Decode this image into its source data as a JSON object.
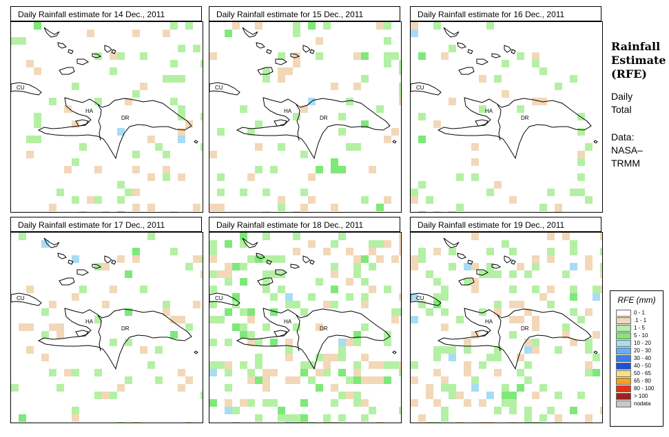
{
  "panels": [
    {
      "title": "Daily Rainfall estimate for  14 Dec., 2011",
      "seed": 14,
      "density": 0.1
    },
    {
      "title": "Daily Rainfall estimate for  15 Dec., 2011",
      "seed": 15,
      "density": 0.1
    },
    {
      "title": "Daily Rainfall estimate for  16 Dec., 2011",
      "seed": 16,
      "density": 0.09
    },
    {
      "title": "Daily Rainfall estimate for  17 Dec., 2011",
      "seed": 17,
      "density": 0.08
    },
    {
      "title": "Daily Rainfall estimate for  18 Dec., 2011",
      "seed": 18,
      "density": 0.28
    },
    {
      "title": "Daily Rainfall estimate for  19 Dec., 2011",
      "seed": 19,
      "density": 0.22
    }
  ],
  "map_labels": {
    "cu": "CU",
    "ha": "HA",
    "dr": "DR"
  },
  "side": {
    "title_line1": "Rainfall",
    "title_line2": "Estimate",
    "title_line3": "(RFE)",
    "sub_line1": "Daily",
    "sub_line2": "Total",
    "data_line1": "Data:",
    "data_line2": "NASA–",
    "data_line3": "TRMM"
  },
  "legend": {
    "title": "RFE (mm)",
    "items": [
      {
        "label": "0 - 1",
        "color": "#ffffff"
      },
      {
        "label": ".1 - 1",
        "color": "#f2d8b8"
      },
      {
        "label": "1 - 5",
        "color": "#b4f0a4"
      },
      {
        "label": "5 - 10",
        "color": "#7ee87a"
      },
      {
        "label": "10 - 20",
        "color": "#a8dcf4"
      },
      {
        "label": "20 - 30",
        "color": "#6aaeee"
      },
      {
        "label": "30 - 40",
        "color": "#3a7ee6"
      },
      {
        "label": "40 - 50",
        "color": "#1e50d8"
      },
      {
        "label": "50 - 65",
        "color": "#f6e27a"
      },
      {
        "label": "65 - 80",
        "color": "#f8a020"
      },
      {
        "label": "80 - 100",
        "color": "#e83010"
      },
      {
        "label": "> 100",
        "color": "#a02020"
      },
      {
        "label": "nodata",
        "color": "#c8c8c8"
      }
    ]
  }
}
